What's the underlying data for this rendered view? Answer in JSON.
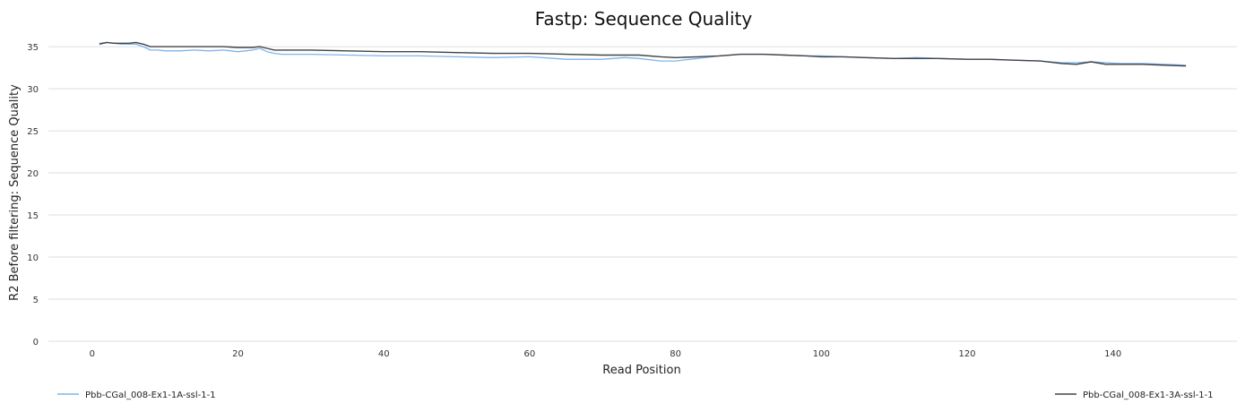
{
  "chart_data": {
    "type": "line",
    "title": "Fastp: Sequence Quality",
    "xlabel": "Read Position",
    "ylabel": "R2 Before filtering: Sequence Quality",
    "xlim": [
      -6,
      157
    ],
    "ylim": [
      0,
      36.5
    ],
    "xticks": [
      0,
      20,
      40,
      60,
      80,
      100,
      120,
      140
    ],
    "yticks": [
      0,
      5,
      10,
      15,
      20,
      25,
      30,
      35
    ],
    "grid": true,
    "legend": "bottom",
    "series": [
      {
        "name": "Pbb-CGal_008-Ex1-1A-ssl-1-1",
        "color": "#7cb5ec",
        "points": [
          [
            1,
            35.4
          ],
          [
            2,
            35.5
          ],
          [
            3,
            35.4
          ],
          [
            4,
            35.3
          ],
          [
            5,
            35.3
          ],
          [
            6,
            35.3
          ],
          [
            7,
            35.0
          ],
          [
            8,
            34.6
          ],
          [
            9,
            34.6
          ],
          [
            10,
            34.5
          ],
          [
            12,
            34.5
          ],
          [
            14,
            34.6
          ],
          [
            16,
            34.5
          ],
          [
            18,
            34.6
          ],
          [
            20,
            34.4
          ],
          [
            21,
            34.5
          ],
          [
            22,
            34.6
          ],
          [
            23,
            34.8
          ],
          [
            24,
            34.4
          ],
          [
            25,
            34.2
          ],
          [
            26,
            34.1
          ],
          [
            30,
            34.1
          ],
          [
            35,
            34.0
          ],
          [
            40,
            33.9
          ],
          [
            45,
            33.9
          ],
          [
            50,
            33.8
          ],
          [
            55,
            33.7
          ],
          [
            60,
            33.8
          ],
          [
            65,
            33.5
          ],
          [
            70,
            33.5
          ],
          [
            73,
            33.7
          ],
          [
            75,
            33.6
          ],
          [
            78,
            33.3
          ],
          [
            80,
            33.3
          ],
          [
            83,
            33.6
          ],
          [
            86,
            33.9
          ],
          [
            89,
            34.1
          ],
          [
            92,
            34.1
          ],
          [
            95,
            34.0
          ],
          [
            98,
            33.9
          ],
          [
            100,
            33.9
          ],
          [
            103,
            33.8
          ],
          [
            106,
            33.7
          ],
          [
            110,
            33.6
          ],
          [
            113,
            33.7
          ],
          [
            116,
            33.6
          ],
          [
            120,
            33.5
          ],
          [
            123,
            33.5
          ],
          [
            126,
            33.4
          ],
          [
            130,
            33.3
          ],
          [
            133,
            33.1
          ],
          [
            135,
            33.1
          ],
          [
            137,
            33.2
          ],
          [
            139,
            33.1
          ],
          [
            141,
            33.0
          ],
          [
            144,
            33.0
          ],
          [
            147,
            32.9
          ],
          [
            150,
            32.8
          ]
        ]
      },
      {
        "name": "Pbb-CGal_008-Ex1-3A-ssl-1-1",
        "color": "#434348",
        "points": [
          [
            1,
            35.3
          ],
          [
            2,
            35.5
          ],
          [
            3,
            35.4
          ],
          [
            4,
            35.4
          ],
          [
            5,
            35.4
          ],
          [
            6,
            35.5
          ],
          [
            7,
            35.3
          ],
          [
            8,
            35.0
          ],
          [
            10,
            35.0
          ],
          [
            12,
            35.0
          ],
          [
            14,
            35.0
          ],
          [
            16,
            35.0
          ],
          [
            18,
            35.0
          ],
          [
            20,
            34.9
          ],
          [
            22,
            34.9
          ],
          [
            23,
            35.0
          ],
          [
            24,
            34.8
          ],
          [
            25,
            34.6
          ],
          [
            30,
            34.6
          ],
          [
            35,
            34.5
          ],
          [
            40,
            34.4
          ],
          [
            45,
            34.4
          ],
          [
            50,
            34.3
          ],
          [
            55,
            34.2
          ],
          [
            60,
            34.2
          ],
          [
            65,
            34.1
          ],
          [
            70,
            34.0
          ],
          [
            75,
            34.0
          ],
          [
            78,
            33.8
          ],
          [
            80,
            33.7
          ],
          [
            83,
            33.8
          ],
          [
            86,
            33.9
          ],
          [
            89,
            34.1
          ],
          [
            92,
            34.1
          ],
          [
            95,
            34.0
          ],
          [
            98,
            33.9
          ],
          [
            100,
            33.8
          ],
          [
            103,
            33.8
          ],
          [
            106,
            33.7
          ],
          [
            110,
            33.6
          ],
          [
            113,
            33.6
          ],
          [
            116,
            33.6
          ],
          [
            120,
            33.5
          ],
          [
            123,
            33.5
          ],
          [
            126,
            33.4
          ],
          [
            130,
            33.3
          ],
          [
            133,
            33.0
          ],
          [
            135,
            32.9
          ],
          [
            137,
            33.2
          ],
          [
            139,
            32.9
          ],
          [
            141,
            32.9
          ],
          [
            144,
            32.9
          ],
          [
            147,
            32.8
          ],
          [
            150,
            32.7
          ]
        ]
      }
    ]
  }
}
